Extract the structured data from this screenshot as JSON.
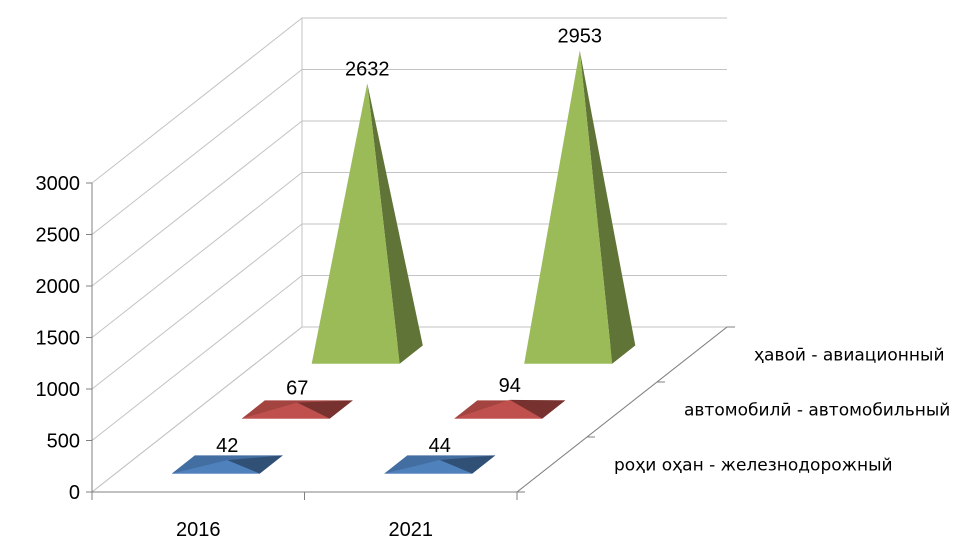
{
  "chart_data": {
    "type": "bar",
    "subtype": "3d-pyramid",
    "title": "",
    "xlabel": "",
    "ylabel": "",
    "ylim": [
      0,
      3000
    ],
    "yticks": [
      "0",
      "500",
      "1000",
      "1500",
      "2000",
      "2500",
      "3000"
    ],
    "categories": [
      "2016",
      "2021"
    ],
    "grid": true,
    "legend": "none",
    "series": [
      {
        "name": "роҳи оҳан - железнодорожный",
        "values": [
          42,
          44
        ],
        "color": "#4F81BD"
      },
      {
        "name": "автомобилӣ - автомобильный",
        "values": [
          67,
          94
        ],
        "color": "#C0504D"
      },
      {
        "name": "ҳавоӣ - авиационный",
        "values": [
          2632,
          2953
        ],
        "color": "#9BBB59"
      }
    ]
  }
}
